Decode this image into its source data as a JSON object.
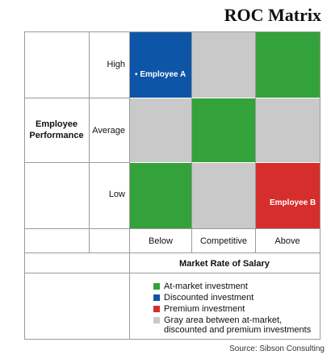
{
  "title": "ROC Matrix",
  "axes": {
    "y_label": "Employee Performance",
    "x_label": "Market Rate of Salary",
    "rows": [
      "High",
      "Average",
      "Low"
    ],
    "columns": [
      "Below",
      "Competitive",
      "Above"
    ]
  },
  "cells": {
    "high_below": {
      "color": "blue",
      "label": "Employee A"
    },
    "high_competitive": {
      "color": "gray",
      "label": ""
    },
    "high_above": {
      "color": "green",
      "label": ""
    },
    "average_below": {
      "color": "gray",
      "label": ""
    },
    "average_competitive": {
      "color": "green",
      "label": ""
    },
    "average_above": {
      "color": "gray",
      "label": ""
    },
    "low_below": {
      "color": "green",
      "label": ""
    },
    "low_competitive": {
      "color": "gray",
      "label": ""
    },
    "low_above": {
      "color": "red",
      "label": "Employee B"
    }
  },
  "colors": {
    "green": "#34a23a",
    "blue": "#0d55a6",
    "red": "#d62e2c",
    "gray": "#c9c9c9"
  },
  "legend": [
    {
      "color": "green",
      "text": "At-market investment"
    },
    {
      "color": "blue",
      "text": "Discounted investment"
    },
    {
      "color": "red",
      "text": "Premium investment"
    },
    {
      "color": "gray",
      "text": "Gray area between at-market, discounted and premium investments"
    }
  ],
  "source": "Source: Sibson Consulting"
}
